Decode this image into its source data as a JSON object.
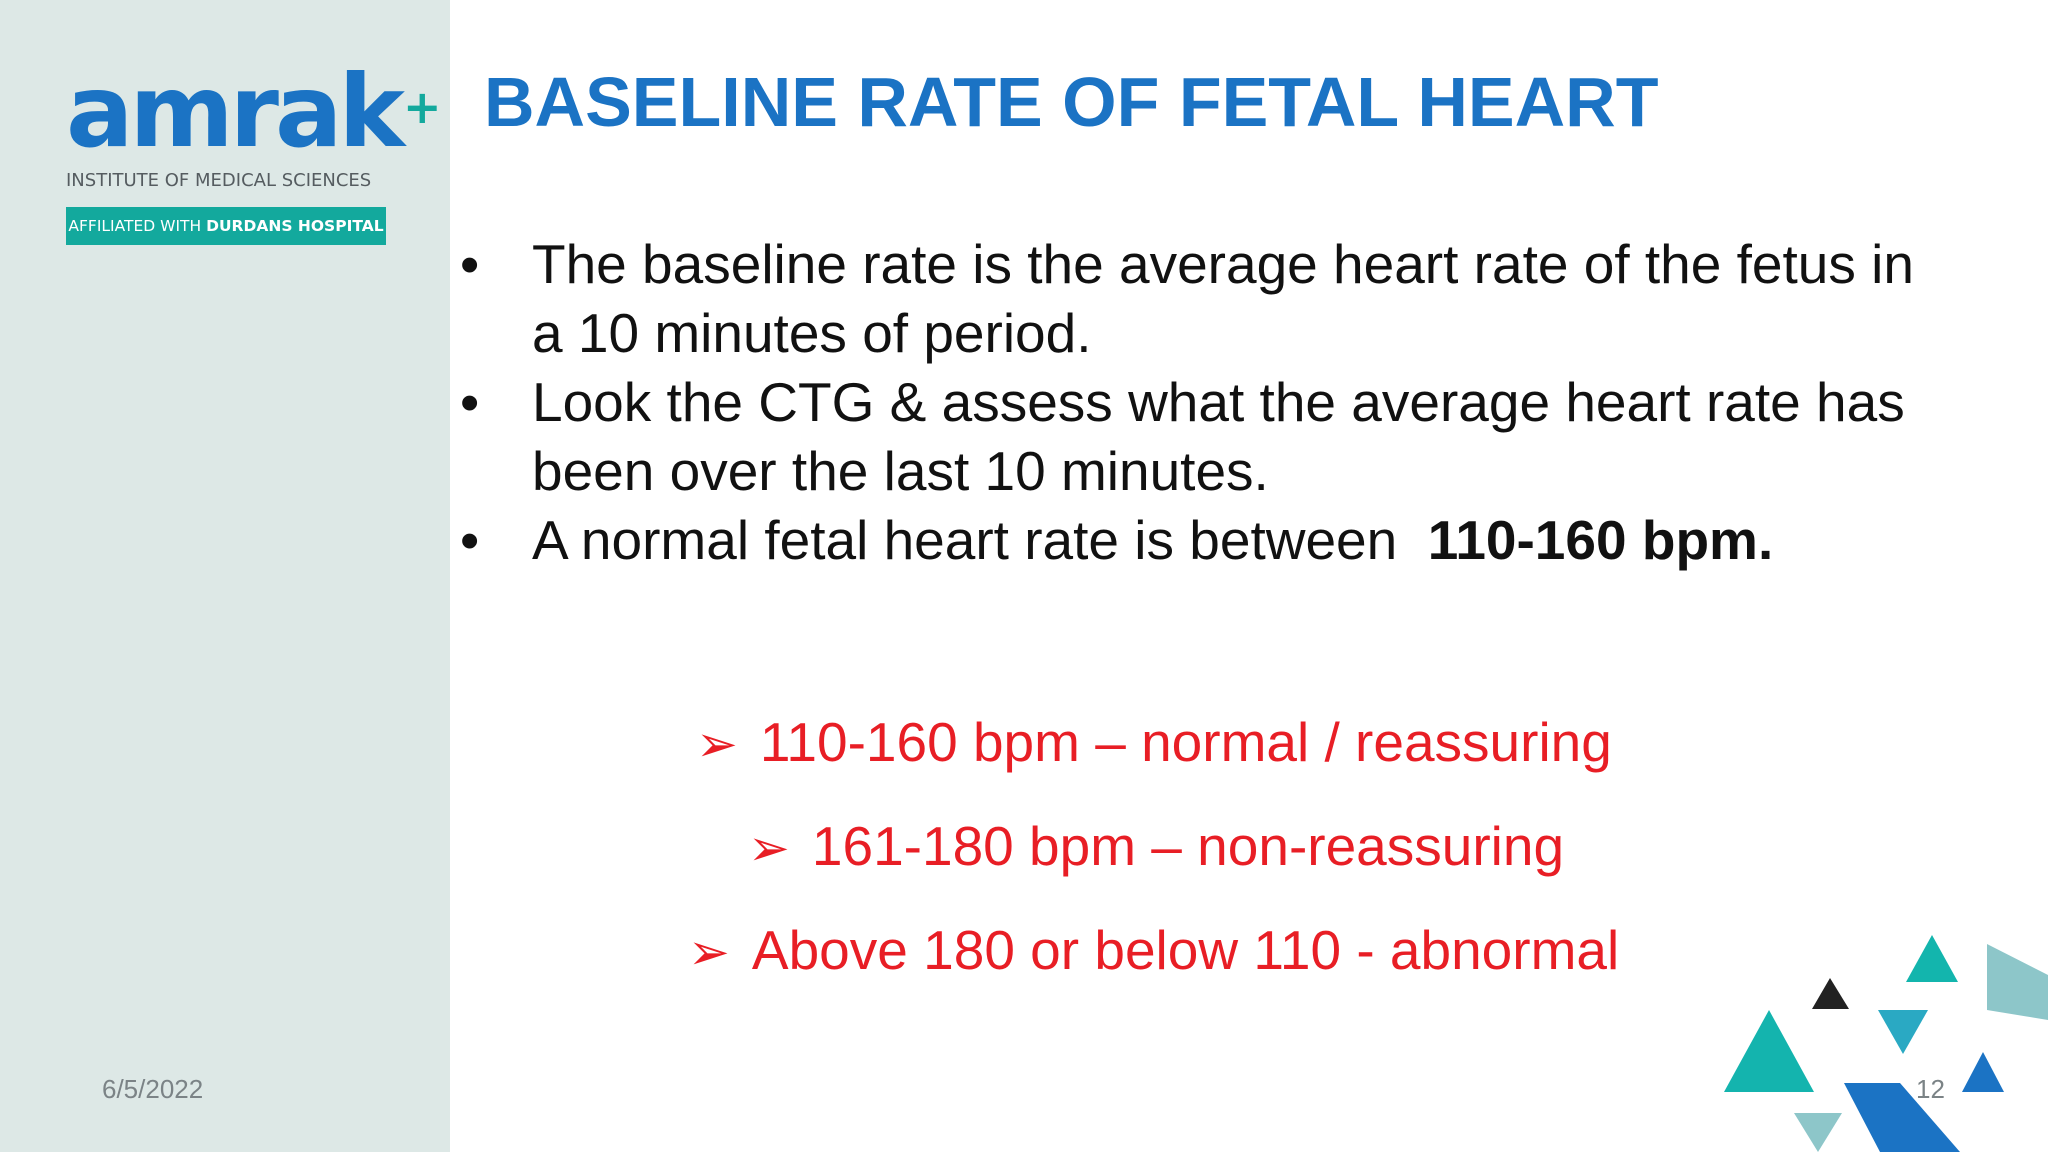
{
  "brand": {
    "name": "amrak",
    "plus": "+",
    "subtitle": "INSTITUTE OF MEDICAL SCIENCES",
    "badge_prefix": "AFFILIATED WITH",
    "badge_name": "DURDANS HOSPITAL",
    "colors": {
      "blue": "#1b73c4",
      "teal": "#13a99d"
    }
  },
  "slide": {
    "title": "BASELINE RATE OF FETAL HEART",
    "bullet_symbol": "•",
    "bullets": [
      {
        "text": "The baseline rate is the average heart rate of the fetus in a 10 minutes of period."
      },
      {
        "text": "Look the CTG & assess what the average heart rate has been over the last 10 minutes."
      },
      {
        "text": "A normal fetal heart rate is between  ",
        "bold": "110-160 bpm."
      }
    ],
    "arrow_symbol": "➢",
    "ranges": [
      {
        "text": "110-160 bpm – normal / reassuring"
      },
      {
        "text": "161-180 bpm – non-reassuring"
      },
      {
        "text": "Above 180 or below 110 - abnormal"
      }
    ],
    "accent_color": "#e81e25"
  },
  "footer": {
    "date": "6/5/2022",
    "page_number": "12"
  }
}
